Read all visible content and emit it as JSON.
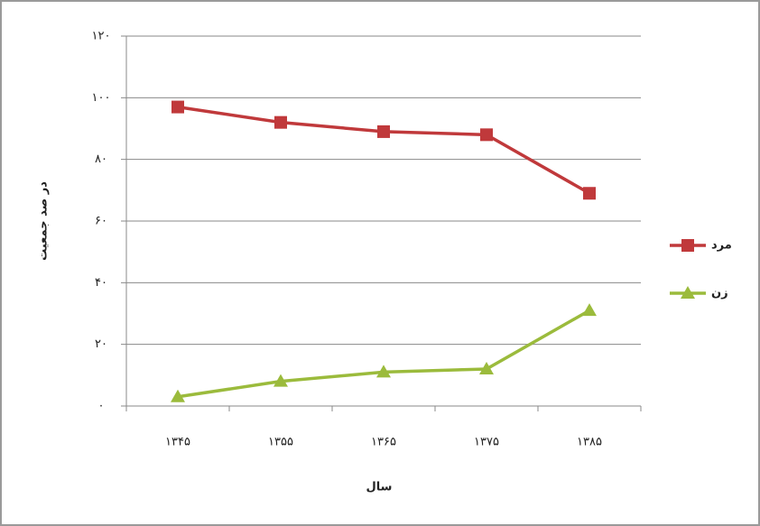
{
  "chart_data": {
    "type": "line",
    "categories": [
      "۱۳۴۵",
      "۱۳۵۵",
      "۱۳۶۵",
      "۱۳۷۵",
      "۱۳۸۵"
    ],
    "series": [
      {
        "name": "مرد",
        "color": "#c0393b",
        "marker": "square",
        "values": [
          97,
          92,
          89,
          88,
          69
        ]
      },
      {
        "name": "زن",
        "color": "#9bbb3c",
        "marker": "triangle",
        "values": [
          3,
          8,
          11,
          12,
          31
        ]
      }
    ],
    "xlabel": "سال",
    "ylabel": "در صد جمعیت",
    "ylim": [
      0,
      120
    ],
    "yticks": [
      {
        "value": 0,
        "label": "۰"
      },
      {
        "value": 20,
        "label": "۲۰"
      },
      {
        "value": 40,
        "label": "۴۰"
      },
      {
        "value": 60,
        "label": "۶۰"
      },
      {
        "value": 80,
        "label": "۸۰"
      },
      {
        "value": 100,
        "label": "۱۰۰"
      },
      {
        "value": 120,
        "label": "۱۲۰"
      }
    ],
    "grid": true,
    "legend": "right"
  }
}
